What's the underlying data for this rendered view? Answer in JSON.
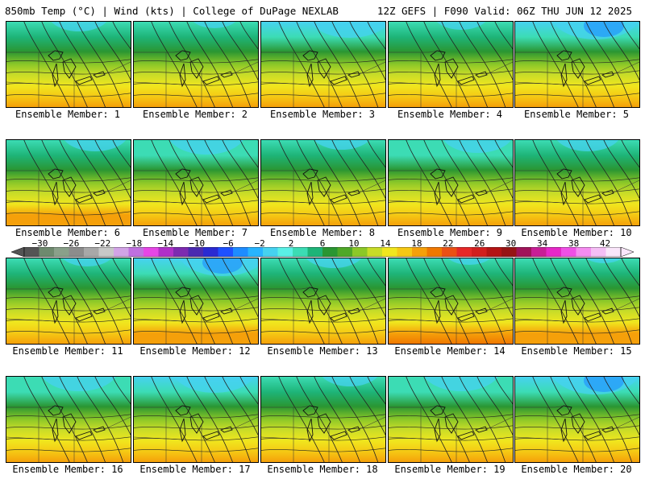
{
  "header": {
    "left": "850mb Temp (°C) | Wind (kts) | College of DuPage NEXLAB",
    "right": "12Z GEFS | F090 Valid: 06Z THU JUN 12 2025"
  },
  "colorbar": {
    "tick_labels": [
      "−30",
      "−26",
      "−22",
      "−18",
      "−14",
      "−10",
      "−6",
      "−2",
      "2",
      "6",
      "10",
      "14",
      "18",
      "22",
      "26",
      "30",
      "34",
      "38",
      "42"
    ],
    "colors": [
      "#545454",
      "#6e8a6e",
      "#8aa08a",
      "#8c8c8c",
      "#a8a8a8",
      "#c8c8c8",
      "#d2a4e6",
      "#c070e0",
      "#e646e6",
      "#b030c8",
      "#7d2ab0",
      "#4a2ab0",
      "#2a2ad2",
      "#1e50ff",
      "#1e8cff",
      "#28b4ff",
      "#46d2f0",
      "#5af0e6",
      "#3cdcb4",
      "#1eb478",
      "#2a9632",
      "#4fa828",
      "#8cc828",
      "#c8dc28",
      "#f0e61e",
      "#f5c814",
      "#f5a00a",
      "#f07800",
      "#eb5014",
      "#e62828",
      "#d21e1e",
      "#b41414",
      "#961414",
      "#a0145a",
      "#c81e96",
      "#e628c8",
      "#f050e6",
      "#f58cf0",
      "#f5bef5",
      "#fae6fa"
    ],
    "range": [
      -32,
      44
    ]
  },
  "panels": [
    {
      "label": "Ensemble Member: 1"
    },
    {
      "label": "Ensemble Member: 2"
    },
    {
      "label": "Ensemble Member: 3"
    },
    {
      "label": "Ensemble Member: 4"
    },
    {
      "label": "Ensemble Member: 5"
    },
    {
      "label": "Ensemble Member: 6"
    },
    {
      "label": "Ensemble Member: 7"
    },
    {
      "label": "Ensemble Member: 8"
    },
    {
      "label": "Ensemble Member: 9"
    },
    {
      "label": "Ensemble Member: 10"
    },
    {
      "label": "Ensemble Member: 11"
    },
    {
      "label": "Ensemble Member: 12"
    },
    {
      "label": "Ensemble Member: 13"
    },
    {
      "label": "Ensemble Member: 14"
    },
    {
      "label": "Ensemble Member: 15"
    },
    {
      "label": "Ensemble Member: 16"
    },
    {
      "label": "Ensemble Member: 17"
    },
    {
      "label": "Ensemble Member: 18"
    },
    {
      "label": "Ensemble Member: 19"
    },
    {
      "label": "Ensemble Member: 20"
    }
  ]
}
